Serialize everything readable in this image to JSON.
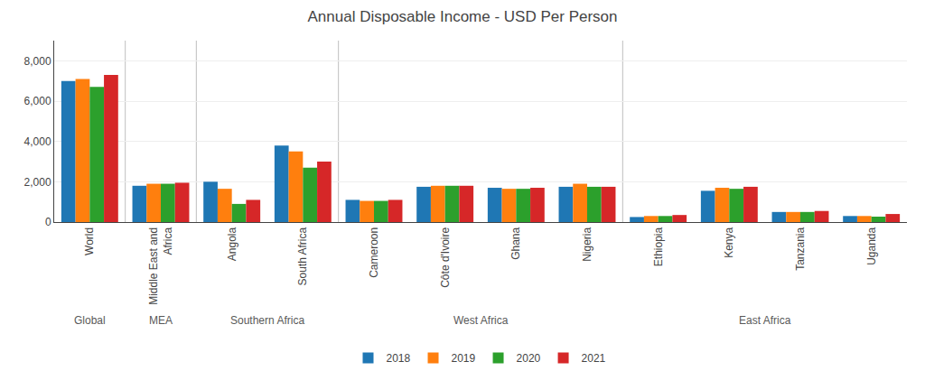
{
  "chart_data": {
    "type": "bar",
    "title": "Annual Disposable Income - USD Per Person",
    "categories": [
      "World",
      "Middle East and\nAfrica",
      "Angola",
      "South Africa",
      "Cameroon",
      "Côte d'Ivoire",
      "Ghana",
      "Nigeria",
      "Ethiopia",
      "Kenya",
      "Tanzania",
      "Uganda"
    ],
    "series": [
      {
        "name": "2018",
        "values": [
          7000,
          1800,
          2000,
          3800,
          1100,
          1750,
          1700,
          1750,
          250,
          1550,
          500,
          300
        ]
      },
      {
        "name": "2019",
        "values": [
          7100,
          1900,
          1650,
          3500,
          1050,
          1800,
          1650,
          1900,
          300,
          1700,
          500,
          300
        ]
      },
      {
        "name": "2020",
        "values": [
          6700,
          1900,
          900,
          2700,
          1050,
          1800,
          1650,
          1750,
          300,
          1650,
          500,
          270
        ]
      },
      {
        "name": "2021",
        "values": [
          7300,
          1950,
          1100,
          3000,
          1100,
          1800,
          1700,
          1750,
          350,
          1750,
          550,
          400
        ]
      }
    ],
    "annotations": [
      {
        "text": "Global",
        "categories": [
          "World"
        ]
      },
      {
        "text": "MEA",
        "categories": [
          "Middle East and\nAfrica"
        ]
      },
      {
        "text": "Southern Africa",
        "categories": [
          "Angola",
          "South Africa"
        ]
      },
      {
        "text": "West Africa",
        "categories": [
          "Cameroon",
          "Côte d'Ivoire",
          "Ghana",
          "Nigeria"
        ]
      },
      {
        "text": "East Africa",
        "categories": [
          "Ethiopia",
          "Kenya",
          "Tanzania",
          "Uganda"
        ]
      }
    ],
    "ylim": [
      0,
      9000
    ],
    "yticks": [
      0,
      {
        "value": 2000,
        "label": "2,000"
      },
      {
        "value": 4000,
        "label": "4,000"
      },
      {
        "value": 6000,
        "label": "6,000"
      },
      {
        "value": 8000,
        "label": "8,000"
      }
    ],
    "grid": true,
    "legend": "bottom"
  }
}
